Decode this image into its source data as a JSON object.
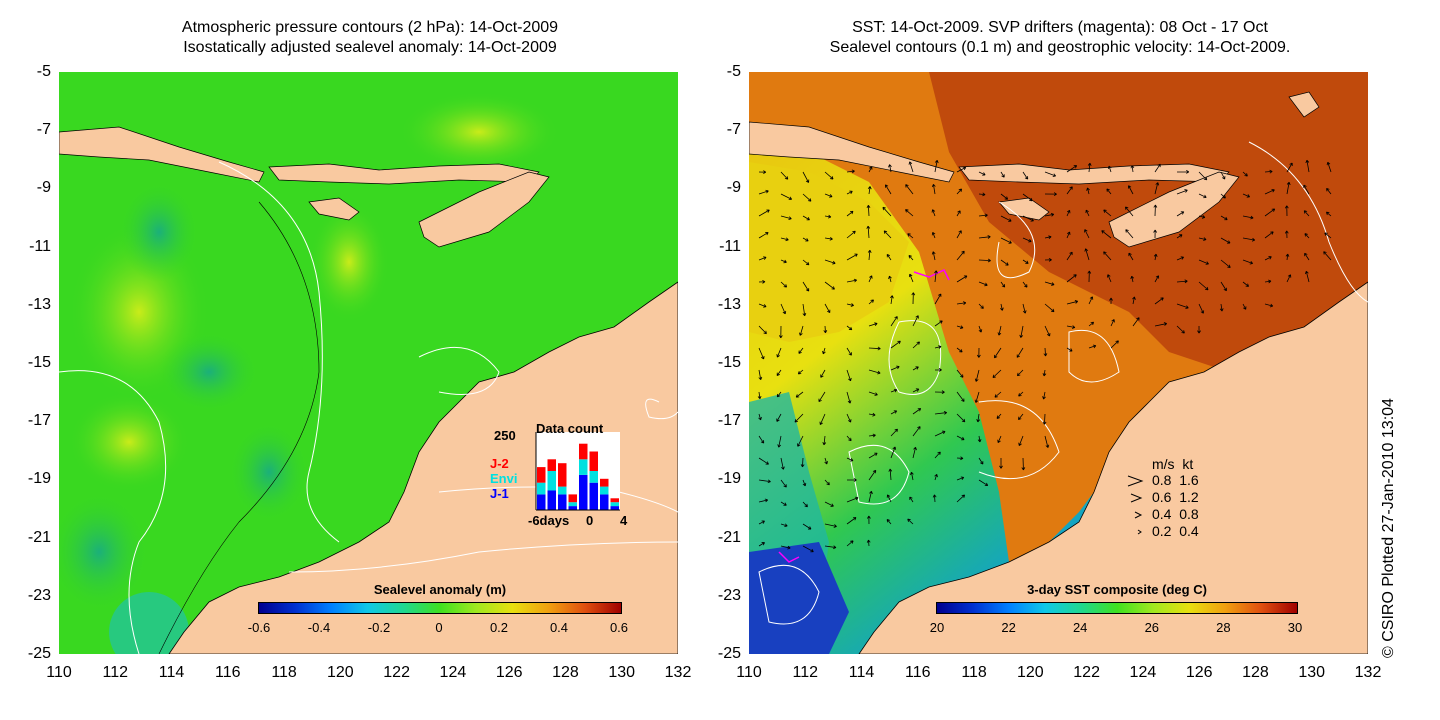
{
  "left_panel": {
    "title_line1": "Atmospheric pressure contours (2 hPa): 14-Oct-2009",
    "title_line2": "Isostatically adjusted sealevel anomaly: 14-Oct-2009",
    "colorbar_title": "Sealevel anomaly (m)",
    "colorbar_ticks": [
      "-0.6",
      "-0.4",
      "-0.2",
      "0",
      "0.2",
      "0.4",
      "0.6"
    ],
    "inset": {
      "title": "Data count",
      "ymax_label": "250",
      "legend": [
        "J-2",
        "Envi",
        "J-1"
      ],
      "legend_colors": [
        "#ff0000",
        "#00e0e0",
        "#0000ff"
      ],
      "x_labels": [
        "-6days",
        "0",
        "4"
      ],
      "bar_heights_fraction": [
        [
          0.2,
          0.15,
          0.2
        ],
        [
          0.15,
          0.25,
          0.25
        ],
        [
          0.3,
          0.1,
          0.2
        ],
        [
          0.1,
          0.05,
          0.05
        ],
        [
          0.2,
          0.2,
          0.45
        ],
        [
          0.25,
          0.15,
          0.35
        ],
        [
          0.1,
          0.1,
          0.2
        ],
        [
          0.05,
          0.05,
          0.05
        ]
      ]
    }
  },
  "right_panel": {
    "title_line1": "SST: 14-Oct-2009. SVP drifters (magenta): 08 Oct - 17 Oct",
    "title_line2": "Sealevel contours (0.1 m) and geostrophic velocity: 14-Oct-2009.",
    "colorbar_title": "3-day SST composite (deg C)",
    "colorbar_ticks": [
      "20",
      "22",
      "24",
      "26",
      "28",
      "30"
    ],
    "speed_legend": {
      "header": "m/s  kt",
      "rows": [
        "0.8  1.6",
        "0.6  1.2",
        "0.4  0.8",
        "0.2  0.4"
      ]
    }
  },
  "y_axis_labels": [
    "-5",
    "-7",
    "-9",
    "-11",
    "-13",
    "-15",
    "-17",
    "-19",
    "-21",
    "-23",
    "-25"
  ],
  "x_axis_labels": [
    "110",
    "112",
    "114",
    "116",
    "118",
    "120",
    "122",
    "124",
    "126",
    "128",
    "130",
    "132"
  ],
  "credit": "© CSIRO Plotted 27-Jan-2010 13:04",
  "colors": {
    "land": "#f9c9a0",
    "ocean_left": "#39d820",
    "ocean_left_dark": "#22b84a",
    "ocean_left_warm": "#b8e61a",
    "sst_warm": "#b5360a",
    "sst_mid": "#e07a10",
    "sst_yellow": "#e8e010",
    "sst_green": "#30c850",
    "sst_cyan": "#10a0d0",
    "sst_blue": "#1040c0"
  }
}
